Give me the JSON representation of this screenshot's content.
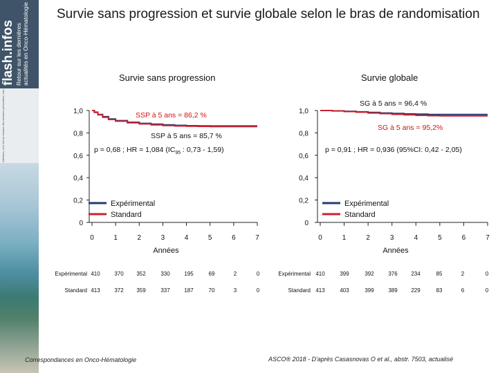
{
  "sidebar": {
    "brand_name": "flash.infos",
    "brand_tagline_1": "Retour sur les dernières",
    "brand_tagline_2": "actualités en Onco-Hématologie",
    "fine_print": "Attention, ceci est un résumé des données présentées, non validé."
  },
  "header": {
    "title": "Survie sans progression et survie globale selon le bras de randomisation"
  },
  "footer": {
    "left": "Correspondances en Onco-Hématologie",
    "right": "ASCO® 2018 - D'après Casasnovas O et al., abstr. 7503, actualisé"
  },
  "colors": {
    "experimental": "#1f3a73",
    "standard": "#c8202e",
    "annotation": "#d01010"
  },
  "chart_data": [
    {
      "type": "line",
      "title": "Survie sans progression",
      "xlabel": "Années",
      "ylabel": "",
      "xlim": [
        0,
        7
      ],
      "ylim": [
        0,
        1
      ],
      "x_ticks": [
        "0",
        "1",
        "2",
        "3",
        "4",
        "5",
        "6",
        "7"
      ],
      "y_ticks": [
        {
          "v": 0,
          "label": "0"
        },
        {
          "v": 0.2,
          "label": "0,2"
        },
        {
          "v": 0.4,
          "label": "0,4"
        },
        {
          "v": 0.6,
          "label": "0,6"
        },
        {
          "v": 0.8,
          "label": "0,8"
        },
        {
          "v": 1.0,
          "label": "1,0"
        }
      ],
      "legend": {
        "placement": "bottom-left",
        "entries": [
          "Expérimental",
          "Standard"
        ]
      },
      "series": [
        {
          "name": "Expérimental",
          "x": [
            0,
            0.1,
            0.25,
            0.45,
            0.7,
            1.0,
            1.5,
            2.0,
            2.5,
            3.0,
            3.5,
            4.0,
            4.5,
            5.0,
            5.5,
            6.0,
            6.5,
            7.0
          ],
          "y": [
            1.0,
            0.985,
            0.965,
            0.945,
            0.925,
            0.91,
            0.895,
            0.885,
            0.878,
            0.872,
            0.867,
            0.864,
            0.863,
            0.862,
            0.862,
            0.862,
            0.862,
            0.862
          ]
        },
        {
          "name": "Standard",
          "x": [
            0,
            0.1,
            0.25,
            0.45,
            0.7,
            1.0,
            1.5,
            2.0,
            2.5,
            3.0,
            3.5,
            4.0,
            4.5,
            5.0,
            5.5,
            6.0,
            6.5,
            7.0
          ],
          "y": [
            1.0,
            0.983,
            0.962,
            0.94,
            0.92,
            0.905,
            0.89,
            0.88,
            0.872,
            0.866,
            0.862,
            0.86,
            0.858,
            0.857,
            0.857,
            0.857,
            0.857,
            0.857
          ]
        }
      ],
      "annotations": [
        {
          "text": "SSP à 5 ans = 86,2 %",
          "color": "red"
        },
        {
          "text": "SSP à 5 ans = 85,7 %",
          "color": "black"
        },
        {
          "text_main": "p = 0,68 ; HR = 1,084 (IC",
          "text_sub": "95",
          "text_end": " : 0,73 - 1,59)",
          "color": "black"
        }
      ],
      "risk_table": [
        {
          "label": "Expérimental",
          "values": [
            "410",
            "370",
            "352",
            "330",
            "195",
            "69",
            "2",
            "0"
          ]
        },
        {
          "label": "Standard",
          "values": [
            "413",
            "372",
            "359",
            "337",
            "187",
            "70",
            "3",
            "0"
          ]
        }
      ]
    },
    {
      "type": "line",
      "title": "Survie globale",
      "xlabel": "Années",
      "ylabel": "",
      "xlim": [
        0,
        7
      ],
      "ylim": [
        0,
        1
      ],
      "x_ticks": [
        "0",
        "1",
        "2",
        "3",
        "4",
        "5",
        "6",
        "7"
      ],
      "y_ticks": [
        {
          "v": 0,
          "label": "0"
        },
        {
          "v": 0.2,
          "label": "0,2"
        },
        {
          "v": 0.4,
          "label": "0,4"
        },
        {
          "v": 0.6,
          "label": "0,6"
        },
        {
          "v": 0.8,
          "label": "0,8"
        },
        {
          "v": 1.0,
          "label": "1,0"
        }
      ],
      "legend": {
        "placement": "bottom-left",
        "entries": [
          "Expérimental",
          "Standard"
        ]
      },
      "series": [
        {
          "name": "Expérimental",
          "x": [
            0,
            0.5,
            1.0,
            1.5,
            2.0,
            2.5,
            3.0,
            3.5,
            4.0,
            4.5,
            5.0,
            5.5,
            6.0,
            6.5,
            7.0
          ],
          "y": [
            1.0,
            0.997,
            0.993,
            0.988,
            0.983,
            0.978,
            0.974,
            0.97,
            0.967,
            0.965,
            0.964,
            0.964,
            0.964,
            0.964,
            0.964
          ]
        },
        {
          "name": "Standard",
          "x": [
            0,
            0.5,
            1.0,
            1.5,
            2.0,
            2.5,
            3.0,
            3.5,
            4.0,
            4.5,
            5.0,
            5.5,
            6.0,
            6.5,
            7.0
          ],
          "y": [
            1.0,
            0.996,
            0.991,
            0.985,
            0.978,
            0.972,
            0.966,
            0.961,
            0.957,
            0.954,
            0.952,
            0.952,
            0.952,
            0.952,
            0.952
          ]
        }
      ],
      "annotations": [
        {
          "text": "SG à 5 ans = 96,4 %",
          "color": "black"
        },
        {
          "text": "SG à 5 ans = 95,2%",
          "color": "red"
        },
        {
          "text": "p = 0,91 ; HR = 0,936 (95%CI: 0,42 - 2,05)",
          "color": "black"
        }
      ],
      "risk_table": [
        {
          "label": "Expérimental",
          "values": [
            "410",
            "399",
            "392",
            "376",
            "234",
            "85",
            "2",
            "0"
          ]
        },
        {
          "label": "Standard",
          "values": [
            "413",
            "403",
            "399",
            "389",
            "229",
            "83",
            "6",
            "0"
          ]
        }
      ]
    }
  ]
}
